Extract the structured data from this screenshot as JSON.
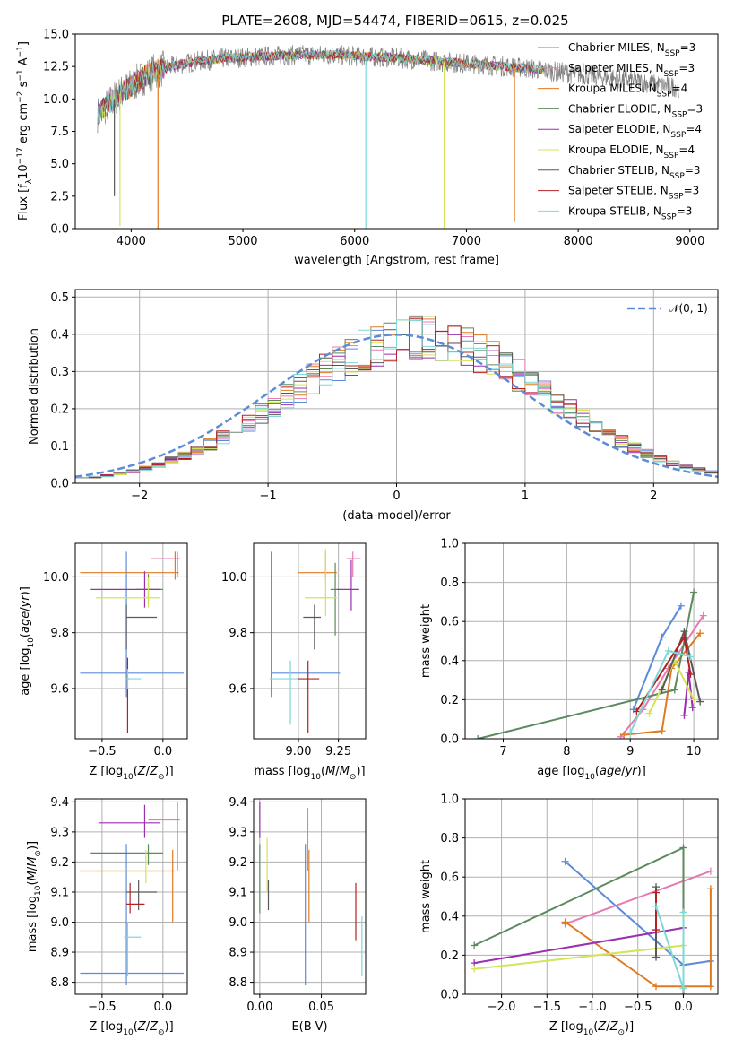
{
  "figure_title": "PLATE=2608, MJD=54474, FIBERID=0615, z=0.025",
  "colors": {
    "chabrier_miles": "#5b8bd9",
    "salpeter_miles": "#e87ab3",
    "kroupa_miles": "#e07a21",
    "chabrier_elodie": "#5b8a5e",
    "salpeter_elodie": "#9b2fae",
    "kroupa_elodie": "#d4e35a",
    "chabrier_stelib": "#595959",
    "salpeter_stelib": "#b22222",
    "kroupa_stelib": "#7fd8d8",
    "data_spectrum": "#808080",
    "normal_curve": "#5b8bd9"
  },
  "chart_data": [
    {
      "id": "spectrum",
      "type": "line",
      "title": "PLATE=2608, MJD=54474, FIBERID=0615, z=0.025",
      "xlabel": "wavelength [Angstrom, rest frame]",
      "ylabel": "Flux [f_λ10^-17 erg cm^-2 s^-1 A^-1]",
      "xlim": [
        3500,
        9250
      ],
      "ylim": [
        0,
        15
      ],
      "xticks": [
        "4000",
        "5000",
        "6000",
        "7000",
        "8000",
        "9000"
      ],
      "yticks": [
        "0.0",
        "2.5",
        "5.0",
        "7.5",
        "10.0",
        "12.5",
        "15.0"
      ],
      "legend_position": "upper right",
      "series": [
        {
          "name": "Chabrier MILES",
          "sub": "SSP",
          "eq": "=3"
        },
        {
          "name": "Salpeter MILES",
          "sub": "SSP",
          "eq": "=3"
        },
        {
          "name": "Kroupa MILES",
          "sub": "SSP",
          "eq": "=4"
        },
        {
          "name": "Chabrier ELODIE",
          "sub": "SSP",
          "eq": "=3"
        },
        {
          "name": "Salpeter ELODIE",
          "sub": "SSP",
          "eq": "=4"
        },
        {
          "name": "Kroupa ELODIE",
          "sub": "SSP",
          "eq": "=4"
        },
        {
          "name": "Chabrier STELIB",
          "sub": "SSP",
          "eq": "=3"
        },
        {
          "name": "Salpeter STELIB",
          "sub": "SSP",
          "eq": "=3"
        },
        {
          "name": "Kroupa STELIB",
          "sub": "SSP",
          "eq": "=3"
        }
      ],
      "continuum": [
        [
          3700,
          8.8
        ],
        [
          3800,
          9.6
        ],
        [
          3900,
          10.4
        ],
        [
          4000,
          11.0
        ],
        [
          4100,
          11.6
        ],
        [
          4200,
          12.1
        ],
        [
          4400,
          12.6
        ],
        [
          4600,
          12.9
        ],
        [
          4800,
          13.1
        ],
        [
          5000,
          13.2
        ],
        [
          5200,
          13.3
        ],
        [
          5500,
          13.4
        ],
        [
          5800,
          13.4
        ],
        [
          6000,
          13.3
        ],
        [
          6300,
          13.2
        ],
        [
          6600,
          13.0
        ],
        [
          6900,
          12.8
        ],
        [
          7200,
          12.6
        ],
        [
          7500,
          12.4
        ],
        [
          7700,
          12.2
        ],
        [
          7900,
          12.0
        ],
        [
          8100,
          11.8
        ],
        [
          8300,
          11.6
        ],
        [
          8500,
          11.4
        ],
        [
          8700,
          11.1
        ],
        [
          8900,
          10.9
        ]
      ],
      "model_range": [
        3700,
        7700
      ],
      "data_range": [
        3700,
        8900
      ],
      "spikes": [
        {
          "wavelength": 4240,
          "flux": 0.0,
          "series": "Kroupa MILES"
        },
        {
          "wavelength": 6100,
          "flux": 0.0,
          "series": "Kroupa STELIB"
        },
        {
          "wavelength": 6800,
          "flux": 0.0,
          "series": "Kroupa ELODIE"
        },
        {
          "wavelength": 7430,
          "flux": 0.5,
          "series": "Kroupa MILES"
        },
        {
          "wavelength": 3900,
          "flux": 0.2,
          "series": "Kroupa ELODIE"
        },
        {
          "wavelength": 3850,
          "flux": 2.5,
          "series": "Chabrier STELIB"
        }
      ]
    },
    {
      "id": "residuals",
      "type": "line",
      "xlabel": "(data-model)/error",
      "ylabel": "Normed distribution",
      "xlim": [
        -2.5,
        2.5
      ],
      "ylim": [
        0,
        0.52
      ],
      "xticks": [
        "−2",
        "−1",
        "0",
        "1",
        "2"
      ],
      "yticks": [
        "0.0",
        "0.1",
        "0.2",
        "0.3",
        "0.4",
        "0.5"
      ],
      "legend": "𝒩(0, 1)",
      "legend_position": "upper right",
      "reference": "normal(0,1) density, dashed",
      "histograms": "nine step-histograms, one per model, approx. normal"
    },
    {
      "id": "age_vs_Z",
      "type": "scatter",
      "xlabel": "Z [log10(Z/Z⊙)]",
      "ylabel": "age  [log10(age/yr)]",
      "xlim": [
        -0.72,
        0.2
      ],
      "ylim": [
        9.42,
        10.12
      ],
      "xticks": [
        "−0.5",
        "0.0"
      ],
      "yticks": [
        "9.6",
        "9.8",
        "10.0"
      ],
      "points": [
        {
          "series": "Chabrier MILES",
          "x": -0.3,
          "y": 9.655,
          "xlo": -0.68,
          "xhi": 0.17,
          "ylo": 9.57,
          "yhi": 10.09
        },
        {
          "series": "Salpeter MILES",
          "x": 0.12,
          "y": 10.065,
          "xlo": -0.1,
          "xhi": 0.14,
          "ylo": 10.0,
          "yhi": 10.09
        },
        {
          "series": "Kroupa MILES",
          "x": 0.1,
          "y": 10.015,
          "xlo": -0.68,
          "xhi": 0.13,
          "ylo": 9.99,
          "yhi": 10.09
        },
        {
          "series": "Chabrier ELODIE",
          "x": -0.12,
          "y": 9.955,
          "xlo": -0.22,
          "xhi": 0.0,
          "ylo": 9.91,
          "yhi": 10.01
        },
        {
          "series": "Salpeter ELODIE",
          "x": -0.15,
          "y": 9.955,
          "xlo": -0.6,
          "xhi": -0.02,
          "ylo": 9.89,
          "yhi": 10.02
        },
        {
          "series": "Kroupa ELODIE",
          "x": -0.12,
          "y": 9.925,
          "xlo": -0.55,
          "xhi": -0.02,
          "ylo": 9.89,
          "yhi": 10.0
        },
        {
          "series": "Chabrier STELIB",
          "x": -0.3,
          "y": 9.855,
          "xlo": -0.3,
          "xhi": -0.05,
          "ylo": 9.74,
          "yhi": 9.9
        },
        {
          "series": "Salpeter STELIB",
          "x": -0.29,
          "y": 9.635,
          "xlo": -0.3,
          "xhi": -0.28,
          "ylo": 9.44,
          "yhi": 9.71
        },
        {
          "series": "Kroupa STELIB",
          "x": -0.29,
          "y": 9.635,
          "xlo": -0.31,
          "xhi": -0.18,
          "ylo": 9.6,
          "yhi": 9.67
        }
      ]
    },
    {
      "id": "age_vs_mass",
      "type": "scatter",
      "xlabel": "mass [log10(M/M⊙)]",
      "ylabel": "",
      "xlim": [
        8.72,
        9.42
      ],
      "ylim": [
        9.42,
        10.12
      ],
      "xticks": [
        "9.00",
        "9.25"
      ],
      "yticks": [
        "9.6",
        "9.8",
        "10.0"
      ],
      "points": [
        {
          "series": "Chabrier MILES",
          "x": 8.83,
          "y": 9.655,
          "xlo": 8.83,
          "xhi": 9.26,
          "ylo": 9.57,
          "yhi": 10.09
        },
        {
          "series": "Salpeter MILES",
          "x": 9.34,
          "y": 10.065,
          "xlo": 9.3,
          "xhi": 9.39,
          "ylo": 10.0,
          "yhi": 10.09
        },
        {
          "series": "Kroupa MILES",
          "x": 9.17,
          "y": 10.015,
          "xlo": 9.0,
          "xhi": 9.24,
          "ylo": 9.99,
          "yhi": 10.09
        },
        {
          "series": "Chabrier ELODIE",
          "x": 9.23,
          "y": 9.955,
          "xlo": 9.2,
          "xhi": 9.25,
          "ylo": 9.79,
          "yhi": 10.05
        },
        {
          "series": "Salpeter ELODIE",
          "x": 9.33,
          "y": 9.955,
          "xlo": 9.24,
          "xhi": 9.38,
          "ylo": 9.88,
          "yhi": 10.06
        },
        {
          "series": "Kroupa ELODIE",
          "x": 9.17,
          "y": 9.925,
          "xlo": 9.04,
          "xhi": 9.24,
          "ylo": 9.86,
          "yhi": 10.1
        },
        {
          "series": "Chabrier STELIB",
          "x": 9.1,
          "y": 9.855,
          "xlo": 9.03,
          "xhi": 9.14,
          "ylo": 9.74,
          "yhi": 9.9
        },
        {
          "series": "Salpeter STELIB",
          "x": 9.06,
          "y": 9.635,
          "xlo": 9.0,
          "xhi": 9.13,
          "ylo": 9.44,
          "yhi": 9.7
        },
        {
          "series": "Kroupa STELIB",
          "x": 8.95,
          "y": 9.635,
          "xlo": 8.82,
          "xhi": 9.0,
          "ylo": 9.47,
          "yhi": 9.7
        }
      ]
    },
    {
      "id": "weight_vs_age",
      "type": "line",
      "xlabel": "age  [log10(age/yr)]",
      "ylabel": "mass weight",
      "xlim": [
        6.4,
        10.38
      ],
      "ylim": [
        0,
        1
      ],
      "xticks": [
        "7",
        "8",
        "9",
        "10"
      ],
      "yticks": [
        "0.0",
        "0.2",
        "0.4",
        "0.6",
        "0.8",
        "1.0"
      ],
      "series": [
        {
          "series": "Chabrier MILES",
          "points": [
            [
              9.8,
              0.68
            ],
            [
              9.5,
              0.52
            ],
            [
              9.05,
              0.15
            ]
          ]
        },
        {
          "series": "Salpeter MILES",
          "points": [
            [
              8.85,
              0.01
            ],
            [
              9.2,
              0.15
            ],
            [
              9.6,
              0.36
            ],
            [
              10.15,
              0.63
            ]
          ]
        },
        {
          "series": "Kroupa MILES",
          "points": [
            [
              8.9,
              0.02
            ],
            [
              9.5,
              0.04
            ],
            [
              9.65,
              0.36
            ],
            [
              10.1,
              0.54
            ]
          ]
        },
        {
          "series": "Chabrier ELODIE",
          "points": [
            [
              6.6,
              0.0
            ],
            [
              9.7,
              0.25
            ],
            [
              10.0,
              0.75
            ]
          ]
        },
        {
          "series": "Salpeter ELODIE",
          "points": [
            [
              9.85,
              0.12
            ],
            [
              9.92,
              0.34
            ],
            [
              9.98,
              0.16
            ]
          ]
        },
        {
          "series": "Kroupa ELODIE",
          "points": [
            [
              9.3,
              0.13
            ],
            [
              9.7,
              0.4
            ],
            [
              10.0,
              0.2
            ]
          ]
        },
        {
          "series": "Chabrier STELIB",
          "points": [
            [
              9.5,
              0.25
            ],
            [
              9.85,
              0.55
            ],
            [
              10.1,
              0.19
            ]
          ]
        },
        {
          "series": "Salpeter STELIB",
          "points": [
            [
              9.1,
              0.14
            ],
            [
              9.85,
              0.52
            ],
            [
              9.95,
              0.33
            ]
          ]
        },
        {
          "series": "Kroupa STELIB",
          "points": [
            [
              9.0,
              0.03
            ],
            [
              9.6,
              0.45
            ],
            [
              9.95,
              0.42
            ]
          ]
        }
      ]
    },
    {
      "id": "mass_vs_Z",
      "type": "scatter",
      "xlabel": "Z [log10(Z/Z⊙)]",
      "ylabel": "mass [log10(M/M⊙)]",
      "xlim": [
        -0.72,
        0.2
      ],
      "ylim": [
        8.76,
        9.41
      ],
      "xticks": [
        "−0.5",
        "0.0"
      ],
      "yticks": [
        "8.8",
        "8.9",
        "9.0",
        "9.1",
        "9.2",
        "9.3",
        "9.4"
      ],
      "points": [
        {
          "series": "Chabrier MILES",
          "x": -0.3,
          "y": 8.83,
          "xlo": -0.68,
          "xhi": 0.17,
          "ylo": 8.79,
          "yhi": 9.26
        },
        {
          "series": "Salpeter MILES",
          "x": 0.12,
          "y": 9.34,
          "xlo": -0.12,
          "xhi": 0.14,
          "ylo": 9.17,
          "yhi": 9.4
        },
        {
          "series": "Kroupa MILES",
          "x": 0.08,
          "y": 9.17,
          "xlo": -0.68,
          "xhi": 0.1,
          "ylo": 9.0,
          "yhi": 9.24
        },
        {
          "series": "Chabrier ELODIE",
          "x": -0.12,
          "y": 9.23,
          "xlo": -0.6,
          "xhi": 0.0,
          "ylo": 9.19,
          "yhi": 9.26
        },
        {
          "series": "Salpeter ELODIE",
          "x": -0.15,
          "y": 9.33,
          "xlo": -0.53,
          "xhi": -0.02,
          "ylo": 9.28,
          "yhi": 9.39
        },
        {
          "series": "Kroupa ELODIE",
          "x": -0.14,
          "y": 9.17,
          "xlo": -0.55,
          "xhi": -0.04,
          "ylo": 9.13,
          "yhi": 9.24
        },
        {
          "series": "Chabrier STELIB",
          "x": -0.2,
          "y": 9.1,
          "xlo": -0.3,
          "xhi": -0.05,
          "ylo": 9.04,
          "yhi": 9.14
        },
        {
          "series": "Salpeter STELIB",
          "x": -0.27,
          "y": 9.06,
          "xlo": -0.3,
          "xhi": -0.15,
          "ylo": 9.03,
          "yhi": 9.13
        },
        {
          "series": "Kroupa STELIB",
          "x": -0.29,
          "y": 8.95,
          "xlo": -0.32,
          "xhi": -0.18,
          "ylo": 8.82,
          "yhi": 9.0
        }
      ]
    },
    {
      "id": "mass_vs_ebv",
      "type": "scatter",
      "xlabel": "E(B-V)",
      "ylabel": "",
      "xlim": [
        -0.005,
        0.086
      ],
      "ylim": [
        8.76,
        9.41
      ],
      "xticks": [
        "0.00",
        "0.05"
      ],
      "yticks": [
        "8.8",
        "8.9",
        "9.0",
        "9.1",
        "9.2",
        "9.3",
        "9.4"
      ],
      "points": [
        {
          "series": "Chabrier MILES",
          "x": 0.037,
          "ylo": 8.79,
          "yhi": 9.26
        },
        {
          "series": "Salpeter MILES",
          "x": 0.039,
          "ylo": 9.17,
          "yhi": 9.38
        },
        {
          "series": "Kroupa MILES",
          "x": 0.04,
          "ylo": 9.0,
          "yhi": 9.24
        },
        {
          "series": "Chabrier ELODIE",
          "x": 0.0,
          "ylo": 9.03,
          "yhi": 9.26
        },
        {
          "series": "Salpeter ELODIE",
          "x": 0.0,
          "ylo": 9.28,
          "yhi": 9.4
        },
        {
          "series": "Kroupa ELODIE",
          "x": 0.006,
          "ylo": 9.1,
          "yhi": 9.28
        },
        {
          "series": "Chabrier STELIB",
          "x": 0.007,
          "ylo": 9.04,
          "yhi": 9.14
        },
        {
          "series": "Salpeter STELIB",
          "x": 0.078,
          "ylo": 8.94,
          "yhi": 9.13
        },
        {
          "series": "Kroupa STELIB",
          "x": 0.083,
          "ylo": 8.82,
          "yhi": 9.02
        }
      ]
    },
    {
      "id": "weight_vs_Z",
      "type": "line",
      "xlabel": "Z [log10(Z/Z⊙)]",
      "ylabel": "mass weight",
      "xlim": [
        -2.4,
        0.38
      ],
      "ylim": [
        0,
        1
      ],
      "xticks": [
        "−2.0",
        "−1.5",
        "−1.0",
        "−0.5",
        "0.0"
      ],
      "yticks": [
        "0.0",
        "0.2",
        "0.4",
        "0.6",
        "0.8",
        "1.0"
      ],
      "series": [
        {
          "series": "Chabrier MILES",
          "points": [
            [
              -1.3,
              0.68
            ],
            [
              0.0,
              0.15
            ],
            [
              0.3,
              0.17
            ]
          ]
        },
        {
          "series": "Salpeter MILES",
          "points": [
            [
              -1.3,
              0.36
            ],
            [
              0.3,
              0.63
            ]
          ]
        },
        {
          "series": "Kroupa MILES",
          "points": [
            [
              -1.3,
              0.37
            ],
            [
              -0.3,
              0.04
            ],
            [
              0.3,
              0.04
            ],
            [
              0.3,
              0.54
            ]
          ]
        },
        {
          "series": "Chabrier ELODIE",
          "points": [
            [
              -2.3,
              0.25
            ],
            [
              0.0,
              0.75
            ],
            [
              0.0,
              0.0
            ]
          ]
        },
        {
          "series": "Salpeter ELODIE",
          "points": [
            [
              -2.3,
              0.16
            ],
            [
              0.0,
              0.34
            ]
          ]
        },
        {
          "series": "Kroupa ELODIE",
          "points": [
            [
              -2.3,
              0.13
            ],
            [
              0.0,
              0.25
            ],
            [
              0.0,
              0.4
            ]
          ]
        },
        {
          "series": "Chabrier STELIB",
          "points": [
            [
              -0.3,
              0.19
            ],
            [
              -0.3,
              0.55
            ]
          ]
        },
        {
          "series": "Salpeter STELIB",
          "points": [
            [
              -0.3,
              0.52
            ],
            [
              -0.3,
              0.33
            ]
          ]
        },
        {
          "series": "Kroupa STELIB",
          "points": [
            [
              -0.3,
              0.45
            ],
            [
              0.0,
              0.03
            ],
            [
              0.0,
              0.42
            ]
          ]
        }
      ]
    }
  ]
}
